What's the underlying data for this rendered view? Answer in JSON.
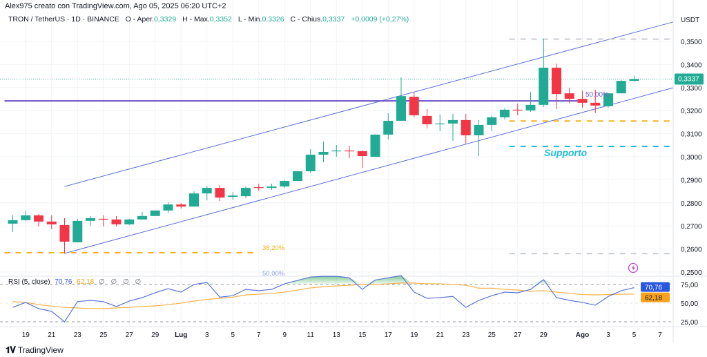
{
  "header": {
    "attribution": "Alex975 creato con TradingView.com, Ago 05, 2025 06:20 UTC+2"
  },
  "legend": {
    "symbol": "TRON / TetherUS · 1D · BINANCE",
    "open_label": "O - Aper.",
    "open": "0,3329",
    "high_label": "H - Max.",
    "high": "0,3352",
    "low_label": "L - Min.",
    "low": "0,3326",
    "close_label": "C - Chius.",
    "close": "0,3337",
    "change": "+0,0009 (+0,27%)"
  },
  "price_axis": {
    "unit": "USDT",
    "ticks": [
      {
        "label": "0,3500",
        "value": 0.35
      },
      {
        "label": "0,3400",
        "value": 0.34
      },
      {
        "label": "0,3300",
        "value": 0.33
      },
      {
        "label": "0,3200",
        "value": 0.32
      },
      {
        "label": "0,3100",
        "value": 0.31
      },
      {
        "label": "0,3000",
        "value": 0.3
      },
      {
        "label": "0,2900",
        "value": 0.29
      },
      {
        "label": "0,2800",
        "value": 0.28
      },
      {
        "label": "0,2700",
        "value": 0.27
      },
      {
        "label": "0,2600",
        "value": 0.26
      },
      {
        "label": "0,2500",
        "value": 0.25
      }
    ],
    "last_price": "0,3337",
    "last_price_value": 0.3337
  },
  "drawings": {
    "fib_382_label": "38,20%",
    "fib_500_label_left": "50,00%",
    "fib_500_label_right": "50,00%",
    "support_label": "Supporto"
  },
  "rsi": {
    "label": "RSI (5, close)",
    "value": "70,76",
    "ma_value": "62,18",
    "na": "∅ ∅ ∅ ∅",
    "ticks": [
      {
        "label": "75,00",
        "value": 75
      },
      {
        "label": "50,00",
        "value": 50
      },
      {
        "label": "25,00",
        "value": 25
      }
    ]
  },
  "time_axis": [
    {
      "label": "19",
      "date": "2025-06-19"
    },
    {
      "label": "21",
      "date": "2025-06-21"
    },
    {
      "label": "23",
      "date": "2025-06-23"
    },
    {
      "label": "25",
      "date": "2025-06-25"
    },
    {
      "label": "27",
      "date": "2025-06-27"
    },
    {
      "label": "29",
      "date": "2025-06-29"
    },
    {
      "label": "Lug",
      "date": "2025-07-01",
      "bold": true
    },
    {
      "label": "3",
      "date": "2025-07-03"
    },
    {
      "label": "5",
      "date": "2025-07-05"
    },
    {
      "label": "7",
      "date": "2025-07-07"
    },
    {
      "label": "9",
      "date": "2025-07-09"
    },
    {
      "label": "11",
      "date": "2025-07-11"
    },
    {
      "label": "13",
      "date": "2025-07-13"
    },
    {
      "label": "15",
      "date": "2025-07-15"
    },
    {
      "label": "17",
      "date": "2025-07-17"
    },
    {
      "label": "19",
      "date": "2025-07-19"
    },
    {
      "label": "21",
      "date": "2025-07-21"
    },
    {
      "label": "23",
      "date": "2025-07-23"
    },
    {
      "label": "25",
      "date": "2025-07-25"
    },
    {
      "label": "27",
      "date": "2025-07-27"
    },
    {
      "label": "29",
      "date": "2025-07-29"
    },
    {
      "label": "Ago",
      "date": "2025-08-01",
      "bold": true
    },
    {
      "label": "3",
      "date": "2025-08-03"
    },
    {
      "label": "5",
      "date": "2025-08-05"
    },
    {
      "label": "7",
      "date": "2025-08-07"
    }
  ],
  "footer": {
    "brand": "TradingView",
    "logo_icon": "tradingview-logo-icon"
  },
  "icons": {
    "alert": "lightning-icon"
  },
  "colors": {
    "up": "#22ab94",
    "down": "#f23645",
    "channel": "#5b6fd6",
    "level": "#6a4fc9",
    "rsi": "#5b74d6",
    "rsi_ma": "#f7b24a",
    "support": "#22bcd6",
    "fib_382": "#f7b21b",
    "badge_rsi": "#2a57e0",
    "badge_ma": "#f7a21b"
  },
  "chart_data": {
    "type": "candlestick",
    "title": "TRON / TetherUS · 1D · BINANCE",
    "ylim": [
      0.25,
      0.36
    ],
    "start_date": "2025-06-18",
    "dates": [
      "2025-06-18",
      "2025-06-19",
      "2025-06-20",
      "2025-06-21",
      "2025-06-22",
      "2025-06-23",
      "2025-06-24",
      "2025-06-25",
      "2025-06-26",
      "2025-06-27",
      "2025-06-28",
      "2025-06-29",
      "2025-06-30",
      "2025-07-01",
      "2025-07-02",
      "2025-07-03",
      "2025-07-04",
      "2025-07-05",
      "2025-07-06",
      "2025-07-07",
      "2025-07-08",
      "2025-07-09",
      "2025-07-10",
      "2025-07-11",
      "2025-07-12",
      "2025-07-13",
      "2025-07-14",
      "2025-07-15",
      "2025-07-16",
      "2025-07-17",
      "2025-07-18",
      "2025-07-19",
      "2025-07-20",
      "2025-07-21",
      "2025-07-22",
      "2025-07-23",
      "2025-07-24",
      "2025-07-25",
      "2025-07-26",
      "2025-07-27",
      "2025-07-28",
      "2025-07-29",
      "2025-07-30",
      "2025-07-31",
      "2025-08-01",
      "2025-08-02",
      "2025-08-03",
      "2025-08-04",
      "2025-08-05"
    ],
    "open": [
      0.271,
      0.2725,
      0.2746,
      0.2719,
      0.2704,
      0.2629,
      0.2722,
      0.2731,
      0.2728,
      0.2707,
      0.2728,
      0.2743,
      0.2767,
      0.2793,
      0.2784,
      0.2841,
      0.2865,
      0.2826,
      0.2829,
      0.2868,
      0.2865,
      0.2871,
      0.2895,
      0.2937,
      0.3009,
      0.3024,
      0.3027,
      0.3024,
      0.3,
      0.3096,
      0.3156,
      0.326,
      0.3177,
      0.3141,
      0.3144,
      0.3159,
      0.3093,
      0.3138,
      0.3171,
      0.3204,
      0.3201,
      0.3225,
      0.3386,
      0.3275,
      0.3251,
      0.3234,
      0.3219,
      0.3275,
      0.3329
    ],
    "high": [
      0.2746,
      0.2767,
      0.2751,
      0.2746,
      0.2734,
      0.2731,
      0.2743,
      0.2746,
      0.2743,
      0.2731,
      0.2761,
      0.2767,
      0.2802,
      0.2799,
      0.285,
      0.2874,
      0.2877,
      0.2847,
      0.2871,
      0.2883,
      0.2883,
      0.2898,
      0.2937,
      0.3033,
      0.3066,
      0.3051,
      0.3048,
      0.3027,
      0.3096,
      0.3189,
      0.3344,
      0.3278,
      0.3207,
      0.3183,
      0.3186,
      0.3186,
      0.3159,
      0.3177,
      0.321,
      0.3231,
      0.3281,
      0.3512,
      0.3404,
      0.3299,
      0.3287,
      0.329,
      0.3275,
      0.3332,
      0.3352
    ],
    "low": [
      0.2674,
      0.2722,
      0.2698,
      0.2686,
      0.2581,
      0.2629,
      0.2698,
      0.2698,
      0.2698,
      0.2704,
      0.2728,
      0.2743,
      0.2757,
      0.2775,
      0.2784,
      0.2811,
      0.2808,
      0.2814,
      0.282,
      0.2853,
      0.2856,
      0.2865,
      0.2895,
      0.2931,
      0.2976,
      0.3,
      0.2994,
      0.2952,
      0.3,
      0.3075,
      0.3156,
      0.3171,
      0.3123,
      0.3111,
      0.3069,
      0.3057,
      0.3003,
      0.3111,
      0.3162,
      0.318,
      0.3195,
      0.3216,
      0.3207,
      0.3231,
      0.3213,
      0.3189,
      0.3213,
      0.3275,
      0.3326
    ],
    "close": [
      0.2725,
      0.2746,
      0.2719,
      0.2707,
      0.2632,
      0.2722,
      0.2734,
      0.2728,
      0.2707,
      0.2728,
      0.2743,
      0.2767,
      0.2793,
      0.2784,
      0.2841,
      0.2865,
      0.2823,
      0.2832,
      0.2865,
      0.2865,
      0.2871,
      0.2895,
      0.2937,
      0.3009,
      0.3021,
      0.3027,
      0.3024,
      0.3003,
      0.3096,
      0.3156,
      0.3263,
      0.318,
      0.3141,
      0.3144,
      0.3159,
      0.3093,
      0.3138,
      0.3171,
      0.3204,
      0.3201,
      0.3225,
      0.3386,
      0.3272,
      0.3251,
      0.3234,
      0.3222,
      0.3275,
      0.3329,
      0.3337
    ],
    "rsi": [
      44.4,
      51,
      42.6,
      39,
      25,
      52,
      53.7,
      52,
      45.4,
      52.8,
      57.4,
      63.9,
      69.4,
      64.8,
      75,
      77.8,
      58,
      60,
      68.5,
      66.7,
      68.5,
      76,
      80.5,
      85,
      86,
      86,
      84,
      68.5,
      81,
      84,
      87,
      64.8,
      56.5,
      57.4,
      59,
      44.4,
      53.7,
      60,
      64.8,
      63.9,
      68.5,
      81.5,
      57.4,
      53.7,
      51,
      47.2,
      59,
      66.7,
      70.76
    ],
    "rsi_ma": [
      52,
      51,
      48,
      46,
      44.4,
      43.5,
      42.6,
      42.6,
      43.5,
      44.4,
      45.4,
      46.3,
      48,
      50,
      52.8,
      55,
      56.5,
      58,
      61,
      62,
      63,
      64.8,
      67.6,
      70.4,
      72,
      73,
      74,
      75,
      75,
      76,
      77,
      77,
      76,
      76,
      75,
      74,
      70,
      70,
      68.5,
      67.6,
      66,
      66.7,
      64.8,
      63,
      61.5,
      61,
      61.5,
      62,
      62.18
    ],
    "rsi_levels": [
      75,
      50,
      25
    ],
    "annotations": {
      "channel_upper": {
        "from": [
          "2025-06-22",
          0.2871
        ],
        "to": [
          "2025-08-08",
          0.3584
        ]
      },
      "channel_lower": {
        "from": [
          "2025-06-22",
          0.2581
        ],
        "to": [
          "2025-08-08",
          0.3299
        ]
      },
      "horizontal_level": {
        "price": 0.3242,
        "from": "2025-06-18",
        "to": "2025-08-01"
      },
      "fib_382": {
        "price": 0.2584,
        "from": "2025-06-18",
        "to": "2025-07-07"
      },
      "fib_top": {
        "price": 0.351,
        "from": "2025-07-27",
        "to": "2025-08-08"
      },
      "fib_bottom": {
        "price": 0.258,
        "from": "2025-07-27",
        "to": "2025-08-08"
      },
      "resistance_dash": {
        "price": 0.3155,
        "from": "2025-07-27",
        "to": "2025-08-08"
      },
      "support_dash": {
        "price": 0.3045,
        "from": "2025-07-27",
        "to": "2025-08-08"
      }
    }
  }
}
